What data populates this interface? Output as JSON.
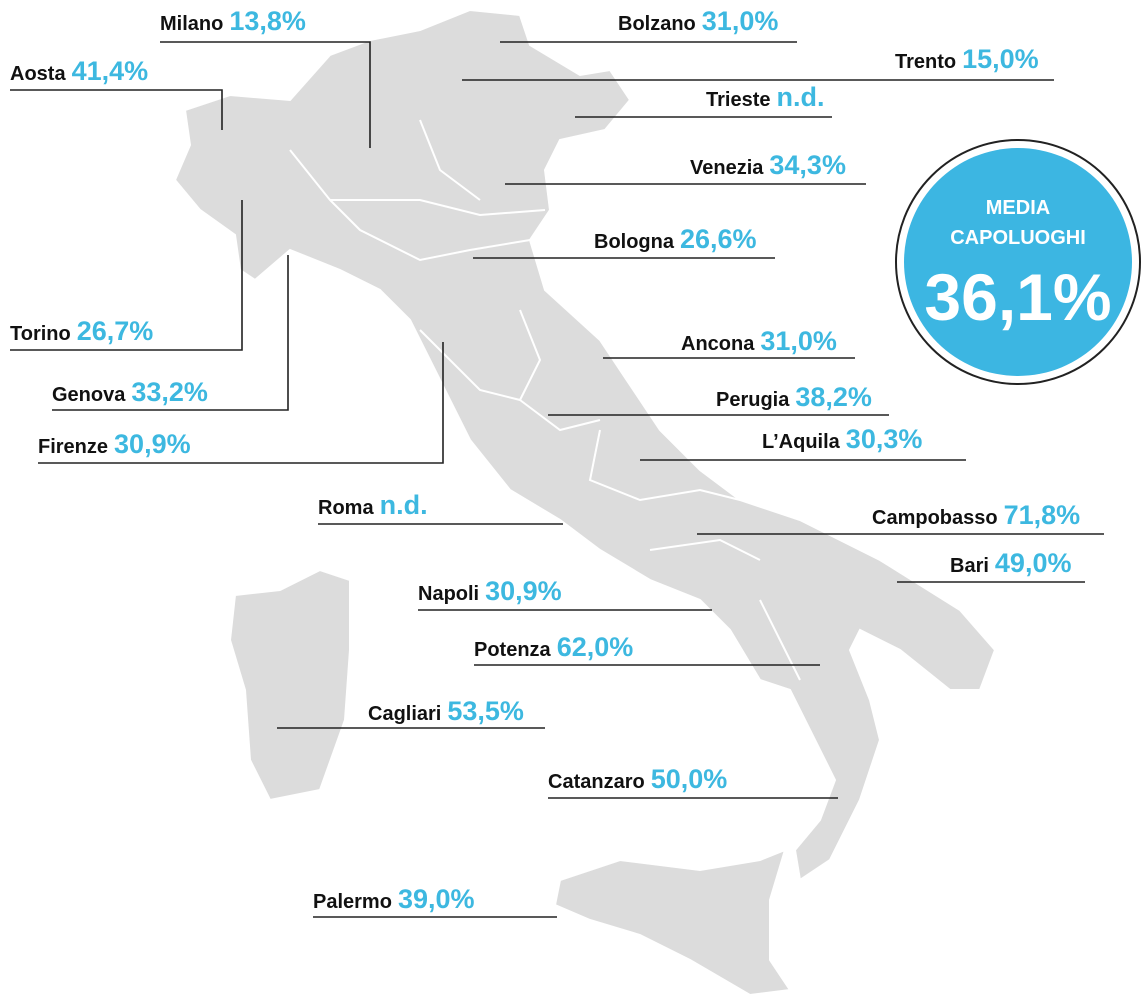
{
  "cities": [
    {
      "name": "Milano",
      "value": "13,8%"
    },
    {
      "name": "Bolzano",
      "value": "31,0%"
    },
    {
      "name": "Aosta",
      "value": "41,4%"
    },
    {
      "name": "Trento",
      "value": "15,0%"
    },
    {
      "name": "Trieste",
      "value": "n.d."
    },
    {
      "name": "Venezia",
      "value": "34,3%"
    },
    {
      "name": "Bologna",
      "value": "26,6%"
    },
    {
      "name": "Torino",
      "value": "26,7%"
    },
    {
      "name": "Ancona",
      "value": "31,0%"
    },
    {
      "name": "Genova",
      "value": "33,2%"
    },
    {
      "name": "Perugia",
      "value": "38,2%"
    },
    {
      "name": "Firenze",
      "value": "30,9%"
    },
    {
      "name": "L’Aquila",
      "value": "30,3%"
    },
    {
      "name": "Roma",
      "value": "n.d."
    },
    {
      "name": "Campobasso",
      "value": "71,8%"
    },
    {
      "name": "Bari",
      "value": "49,0%"
    },
    {
      "name": "Napoli",
      "value": "30,9%"
    },
    {
      "name": "Potenza",
      "value": "62,0%"
    },
    {
      "name": "Cagliari",
      "value": "53,5%"
    },
    {
      "name": "Catanzaro",
      "value": "50,0%"
    },
    {
      "name": "Palermo",
      "value": "39,0%"
    }
  ],
  "average": {
    "line1": "MEDIA",
    "line2": "CAPOLUOGHI",
    "value": "36,1%"
  }
}
